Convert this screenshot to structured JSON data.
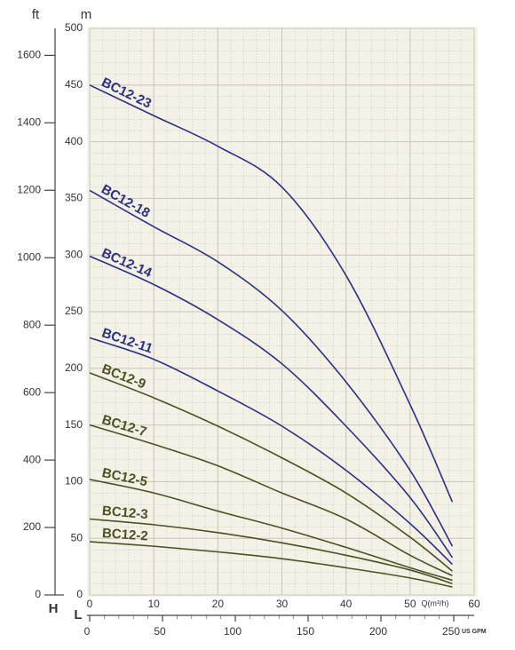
{
  "chart_data": {
    "type": "line",
    "x": [
      0,
      10,
      20,
      30,
      40,
      50,
      56.6
    ],
    "series": [
      {
        "name": "BC12-23",
        "color": "#2c2f86",
        "values": [
          450,
          423,
          396,
          360,
          282,
          168,
          82
        ]
      },
      {
        "name": "BC12-18",
        "color": "#2c2f86",
        "values": [
          357,
          325,
          294,
          251,
          188,
          110,
          43
        ]
      },
      {
        "name": "BC12-14",
        "color": "#2c2f86",
        "values": [
          299,
          274,
          243,
          204,
          149,
          86,
          33
        ]
      },
      {
        "name": "BC12-11",
        "color": "#2c2f86",
        "values": [
          227,
          208,
          180,
          149,
          110,
          63,
          27
        ]
      },
      {
        "name": "BC12-9",
        "color": "#4c5022",
        "values": [
          196,
          174,
          149,
          121,
          90,
          51,
          21
        ]
      },
      {
        "name": "BC12-7",
        "color": "#4c5022",
        "values": [
          150,
          133,
          114,
          90,
          67,
          35,
          17
        ]
      },
      {
        "name": "BC12-5",
        "color": "#4c5022",
        "values": [
          102,
          90,
          74,
          59,
          42,
          24,
          13
        ]
      },
      {
        "name": "BC12-3",
        "color": "#4c5022",
        "values": [
          67,
          62,
          55,
          46,
          35,
          22,
          10
        ]
      },
      {
        "name": "BC12-2",
        "color": "#4c5022",
        "values": [
          47,
          43,
          38,
          32,
          24,
          15,
          7
        ]
      }
    ],
    "xlim": [
      0,
      60
    ],
    "xticks": [
      0,
      10,
      20,
      30,
      40,
      50,
      60
    ],
    "ylim": [
      0,
      500
    ],
    "yticks": [
      0,
      50,
      100,
      150,
      200,
      250,
      300,
      350,
      400,
      450,
      500
    ],
    "y2lim": [
      0,
      1680
    ],
    "y2ticks": [
      0,
      200,
      400,
      600,
      800,
      1000,
      1200,
      1400,
      1600
    ],
    "x2lim": [
      0,
      264
    ],
    "x2ticks": [
      0,
      50,
      100,
      150,
      200,
      250
    ],
    "x_label": "Q(m³/h)",
    "x2_label": "US GPM",
    "y_label": "m",
    "y2_label": "ft",
    "y_symbol": "H",
    "x_symbol": "L",
    "grid": true
  }
}
